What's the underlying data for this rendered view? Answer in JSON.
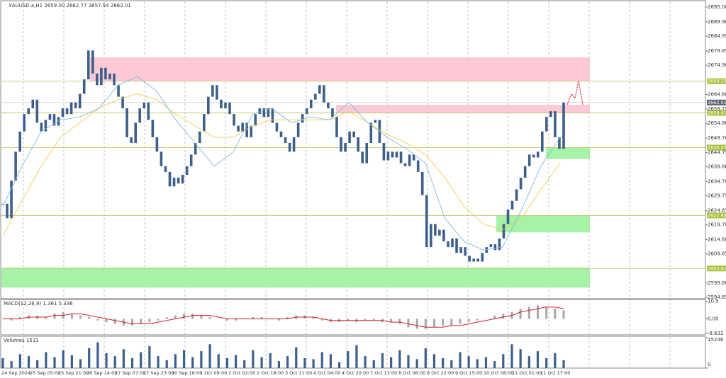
{
  "header": "XAUUSD.a,H1 2659.00 2662.77 2657.54 2662.01",
  "chart_data": {
    "type": "candlestick",
    "candle_color": "#3d5f8c",
    "ylim": [
      2696.96,
      2594.16
    ],
    "yticks": [
      {
        "value": 2695,
        "label": "2695.00"
      },
      {
        "value": 2689.9,
        "label": "2689.90"
      },
      {
        "value": 2684.95,
        "label": "2684.95"
      },
      {
        "value": 2679.85,
        "label": "2679.85"
      },
      {
        "value": 2674.9,
        "label": "2674.90"
      },
      {
        "value": 2664.8,
        "label": "2664.80"
      },
      {
        "value": 2659.75,
        "label": "2659.75"
      },
      {
        "value": 2654.8,
        "label": "2654.80"
      },
      {
        "value": 2649.7,
        "label": "2649.70"
      },
      {
        "value": 2644.75,
        "label": "2644.75"
      },
      {
        "value": 2639.8,
        "label": "2639.80"
      },
      {
        "value": 2634.7,
        "label": "2634.70"
      },
      {
        "value": 2629.75,
        "label": "2629.75"
      },
      {
        "value": 2624.65,
        "label": "2624.65"
      },
      {
        "value": 2619.7,
        "label": "2619.70"
      },
      {
        "value": 2614.6,
        "label": "2614.60"
      },
      {
        "value": 2609.65,
        "label": "2609.65"
      },
      {
        "value": 2599.6,
        "label": "2599.60"
      },
      {
        "value": 2594.65,
        "label": "2594.65"
      }
    ],
    "closes": [
      2627,
      2622,
      2635,
      2645,
      2652,
      2658,
      2660,
      2663,
      2655,
      2652,
      2656,
      2658,
      2654,
      2657,
      2660,
      2658,
      2662,
      2660,
      2665,
      2670,
      2680,
      2672,
      2668,
      2674,
      2670,
      2672,
      2668,
      2664,
      2660,
      2650,
      2648,
      2655,
      2660,
      2662,
      2656,
      2650,
      2645,
      2640,
      2638,
      2633,
      2636,
      2634,
      2637,
      2640,
      2644,
      2648,
      2652,
      2658,
      2664,
      2668,
      2663,
      2660,
      2662,
      2658,
      2654,
      2652,
      2655,
      2650,
      2654,
      2658,
      2660,
      2657,
      2660,
      2655,
      2652,
      2650,
      2648,
      2645,
      2650,
      2655,
      2658,
      2660,
      2663,
      2665,
      2668,
      2662,
      2660,
      2657,
      2650,
      2645,
      2648,
      2652,
      2650,
      2645,
      2641,
      2648,
      2655,
      2656,
      2648,
      2642,
      2645,
      2643,
      2645,
      2641,
      2640,
      2644,
      2642,
      2638,
      2630,
      2612,
      2620,
      2616,
      2618,
      2614,
      2612,
      2615,
      2610,
      2612,
      2609,
      2607,
      2608,
      2607,
      2610,
      2612,
      2613,
      2611,
      2615,
      2620,
      2625,
      2628,
      2632,
      2636,
      2640,
      2644,
      2643,
      2645,
      2652,
      2657,
      2659,
      2650,
      2646,
      2662
    ],
    "fast_ma": {
      "color": "#7fb8e0",
      "values": [
        2626,
        2640,
        2652,
        2656,
        2657,
        2660,
        2668,
        2671,
        2666,
        2656,
        2648,
        2640,
        2645,
        2658,
        2660,
        2655,
        2657,
        2656,
        2662,
        2655,
        2650,
        2646,
        2641,
        2622,
        2614,
        2611,
        2612,
        2625,
        2640,
        2650
      ]
    },
    "slow_ma": {
      "color": "#f2cc4a",
      "values": [
        2616,
        2628,
        2640,
        2650,
        2655,
        2660,
        2663,
        2665,
        2663,
        2658,
        2654,
        2650,
        2650,
        2654,
        2656,
        2656,
        2656,
        2656,
        2659,
        2655,
        2651,
        2648,
        2644,
        2636,
        2626,
        2620,
        2618,
        2622,
        2632,
        2641
      ]
    },
    "levels": [
      2669.38,
      2658.41,
      2646.43,
      2622.94,
      2604.61
    ],
    "level_color": "#c5c96a",
    "current": 2662.01,
    "zones": [
      {
        "top": 2677.6,
        "bottom": 2669.4,
        "color": "#fdc9d5"
      },
      {
        "top": 2661.2,
        "bottom": 2658.3,
        "color": "#fdc9d5"
      },
      {
        "top": 2646.4,
        "bottom": 2642.5,
        "color": "#a6f2a6"
      },
      {
        "top": 2622.9,
        "bottom": 2617.1,
        "color": "#a6f2a6"
      },
      {
        "top": 2604.9,
        "bottom": 2598.0,
        "color": "#a6f2a6"
      }
    ],
    "forecast": {
      "color": "#e03a3a",
      "values": [
        2661.3,
        2665,
        2663.5,
        2669.4,
        2661.3
      ]
    },
    "time_labels": [
      "24 Sep 2024",
      "25 Sep 05:00",
      "25 Sep 21:00",
      "26 Sep 14:00",
      "27 Sep 07:00",
      "27 Sep 23:00",
      "30 Sep 16:00",
      "1 Oct 09:00",
      "2 Oct 02:00",
      "2 Oct 18:00",
      "3 Oct 11:00",
      "4 Oct 04:00",
      "4 Oct 20:00",
      "7 Oct 13:00",
      "8 Oct 06:00",
      "8 Oct 22:00",
      "9 Oct 15:00",
      "10 Oct 08:00",
      "11 Oct 01:00",
      "11 Oct 17:00"
    ],
    "macd": {
      "label": "MACD(12,26,9) 1.361 5.336",
      "ylim": [
        -9.5,
        11.5
      ],
      "yticks": [
        10.5,
        {
          "value": 0,
          "label": "0.00"
        },
        -8.632
      ],
      "histogram": [
        0,
        -1,
        1,
        2,
        2,
        1,
        3,
        4,
        3,
        2,
        1,
        -1,
        -2,
        -3,
        -4,
        -4,
        -3,
        -2,
        -1,
        1,
        2,
        3,
        3,
        2,
        1,
        0,
        -1,
        -1,
        0,
        1,
        1,
        0,
        -1,
        1,
        2,
        2,
        1,
        -1,
        -2,
        -2,
        -1,
        -2,
        -1,
        -1,
        -2,
        -2,
        -3,
        -5,
        -6,
        -6,
        -5,
        -4,
        -4,
        -3,
        -2,
        -1,
        0,
        2,
        3,
        4,
        6,
        7,
        8,
        7,
        6,
        5
      ],
      "signal": {
        "color": "#d42020",
        "values": [
          0,
          0,
          0,
          1,
          1,
          1,
          2,
          2,
          3,
          3,
          2,
          1,
          0,
          -1,
          -2,
          -3,
          -3,
          -3,
          -2,
          -1,
          0,
          1,
          2,
          2,
          2,
          1,
          0,
          0,
          0,
          0,
          0,
          0,
          0,
          0,
          1,
          1,
          1,
          0,
          -1,
          -1,
          -1,
          -1,
          -1,
          -1,
          -1,
          -2,
          -2,
          -3,
          -4,
          -5,
          -5,
          -5,
          -4,
          -4,
          -3,
          -2,
          -1,
          0,
          1,
          2,
          4,
          5,
          6,
          7,
          7,
          6
        ]
      }
    },
    "volumes": {
      "label": "Volumes 1531",
      "color": "#3d5f8c",
      "ylim": [
        0,
        16000
      ],
      "yticks": [
        15246,
        0
      ],
      "values": [
        5000,
        3500,
        7000,
        6000,
        4000,
        8000,
        5500,
        9000,
        6500,
        4500,
        10000,
        13000,
        7500,
        6000,
        9500,
        5000,
        8000,
        11000,
        6000,
        4000,
        7000,
        9000,
        5500,
        8500,
        12000,
        7000,
        5000,
        6500,
        4000,
        9000,
        5500,
        7500,
        3500,
        6000,
        10500,
        5000,
        4500,
        8000,
        7000,
        3000,
        8500,
        11500,
        6000,
        4000,
        7500,
        5500,
        9000,
        6500,
        4500,
        10000,
        7000,
        5000,
        4000,
        8000,
        6000,
        4500,
        5500,
        3500,
        7000,
        12000,
        9500,
        6000,
        8500,
        5000,
        7500,
        4000
      ]
    }
  }
}
